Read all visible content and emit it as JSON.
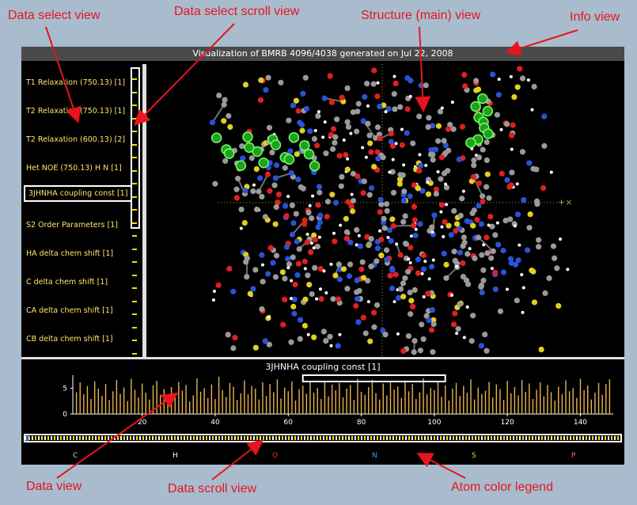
{
  "annotations": {
    "data_select_view": "Data select view",
    "data_select_scroll_view": "Data select scroll view",
    "structure_view": "Structure (main) view",
    "info_view": "Info view",
    "data_view": "Data view",
    "data_scroll_view": "Data scroll view",
    "atom_color_legend": "Atom color legend"
  },
  "info_bar": {
    "text": "Visualization of BMRB 4096/4038 generated on Jul 22, 2008"
  },
  "data_select": {
    "items": [
      {
        "label": "T1 Relaxation (750.13) [1]"
      },
      {
        "label": "T2 Relaxation (750.13) [1]"
      },
      {
        "label": "T2 Relaxation (600.13) [2]"
      },
      {
        "label": "Het NOE (750.13) H N [1]"
      },
      {
        "label": "3JHNHA coupling const [1]",
        "selected": true
      },
      {
        "label": "S2 Order Parameters [1]"
      },
      {
        "label": "HA delta chem shift [1]"
      },
      {
        "label": "C delta chem shift [1]"
      },
      {
        "label": "CA delta chem shift [1]"
      },
      {
        "label": "CB delta chem shift [1]"
      }
    ]
  },
  "data_view": {
    "title": "3JHNHA coupling const [1]",
    "bar_color": "#e8b450"
  },
  "chart_data": {
    "type": "bar",
    "title": "3JHNHA coupling const [1]",
    "xlabel": "",
    "ylabel": "",
    "xticks": [
      20,
      40,
      60,
      80,
      100,
      120,
      140
    ],
    "yticks": [
      0,
      5
    ],
    "xlim": [
      1,
      149
    ],
    "ylim": [
      0,
      7.5
    ],
    "highlight_range": [
      64,
      103
    ],
    "x": [
      2,
      3,
      4,
      5,
      6,
      7,
      8,
      9,
      10,
      11,
      12,
      13,
      14,
      15,
      16,
      17,
      18,
      19,
      20,
      21,
      22,
      23,
      24,
      25,
      26,
      27,
      28,
      29,
      30,
      31,
      32,
      33,
      34,
      35,
      36,
      37,
      38,
      39,
      40,
      41,
      42,
      43,
      44,
      45,
      46,
      47,
      48,
      49,
      50,
      51,
      52,
      53,
      54,
      55,
      56,
      57,
      58,
      59,
      60,
      61,
      62,
      63,
      64,
      65,
      66,
      67,
      68,
      69,
      70,
      71,
      72,
      73,
      74,
      75,
      76,
      77,
      78,
      79,
      80,
      81,
      82,
      83,
      84,
      85,
      86,
      87,
      88,
      89,
      90,
      91,
      92,
      93,
      94,
      95,
      96,
      97,
      98,
      99,
      100,
      101,
      102,
      103,
      104,
      105,
      106,
      107,
      108,
      109,
      110,
      111,
      112,
      113,
      114,
      115,
      116,
      117,
      118,
      119,
      120,
      121,
      122,
      123,
      124,
      125,
      126,
      127,
      128,
      129,
      130,
      131,
      132,
      133,
      134,
      135,
      136,
      137,
      138,
      139,
      140,
      141,
      142,
      143,
      144,
      145,
      146,
      147,
      148
    ],
    "values": [
      4.2,
      6.1,
      3.8,
      5.4,
      2.9,
      6.3,
      4.9,
      3.5,
      5.8,
      2.7,
      4.4,
      6.6,
      3.9,
      5.1,
      2.5,
      6.8,
      4.7,
      3.2,
      5.9,
      4.1,
      2.8,
      5.5,
      6.4,
      3.7,
      4.8,
      2.6,
      5.2,
      3.4,
      6.2,
      4.5,
      5.6,
      2.4,
      3.6,
      6.9,
      4.3,
      5.0,
      3.1,
      5.7,
      2.9,
      7.2,
      4.6,
      3.3,
      6.0,
      5.3,
      2.7,
      4.0,
      6.5,
      3.8,
      5.4,
      4.9,
      2.8,
      6.1,
      3.5,
      5.8,
      4.2,
      6.7,
      3.0,
      5.1,
      4.4,
      6.3,
      2.6,
      4.8,
      5.5,
      3.9,
      6.2,
      4.1,
      5.0,
      2.9,
      6.4,
      3.4,
      5.7,
      4.6,
      6.0,
      3.2,
      4.9,
      5.6,
      2.7,
      6.8,
      4.3,
      3.7,
      5.2,
      6.6,
      4.0,
      2.8,
      5.9,
      3.6,
      6.1,
      4.7,
      5.3,
      3.1,
      6.5,
      4.4,
      5.8,
      2.9,
      4.2,
      6.9,
      3.8,
      5.0,
      4.6,
      6.3,
      3.3,
      5.5,
      2.6,
      4.9,
      6.0,
      3.5,
      5.4,
      4.1,
      6.7,
      2.8,
      5.1,
      3.9,
      4.5,
      6.2,
      3.2,
      5.7,
      4.8,
      2.7,
      6.4,
      4.0,
      5.2,
      3.6,
      6.6,
      4.3,
      5.9,
      2.9,
      4.7,
      6.1,
      3.4,
      5.6,
      4.2,
      2.6,
      5.3,
      3.8,
      6.5,
      4.4,
      5.0,
      3.1,
      6.8,
      4.6,
      5.5,
      2.8,
      4.1,
      6.0,
      3.7,
      5.8,
      6.7
    ]
  },
  "atom_legend": [
    {
      "symbol": "C",
      "color": "#cfcfcf"
    },
    {
      "symbol": "H",
      "color": "#ffffff"
    },
    {
      "symbol": "O",
      "color": "#ff2a2a"
    },
    {
      "symbol": "N",
      "color": "#3a9bff"
    },
    {
      "symbol": "S",
      "color": "#ffd21a"
    },
    {
      "symbol": "P",
      "color": "#ff5ad2"
    }
  ]
}
